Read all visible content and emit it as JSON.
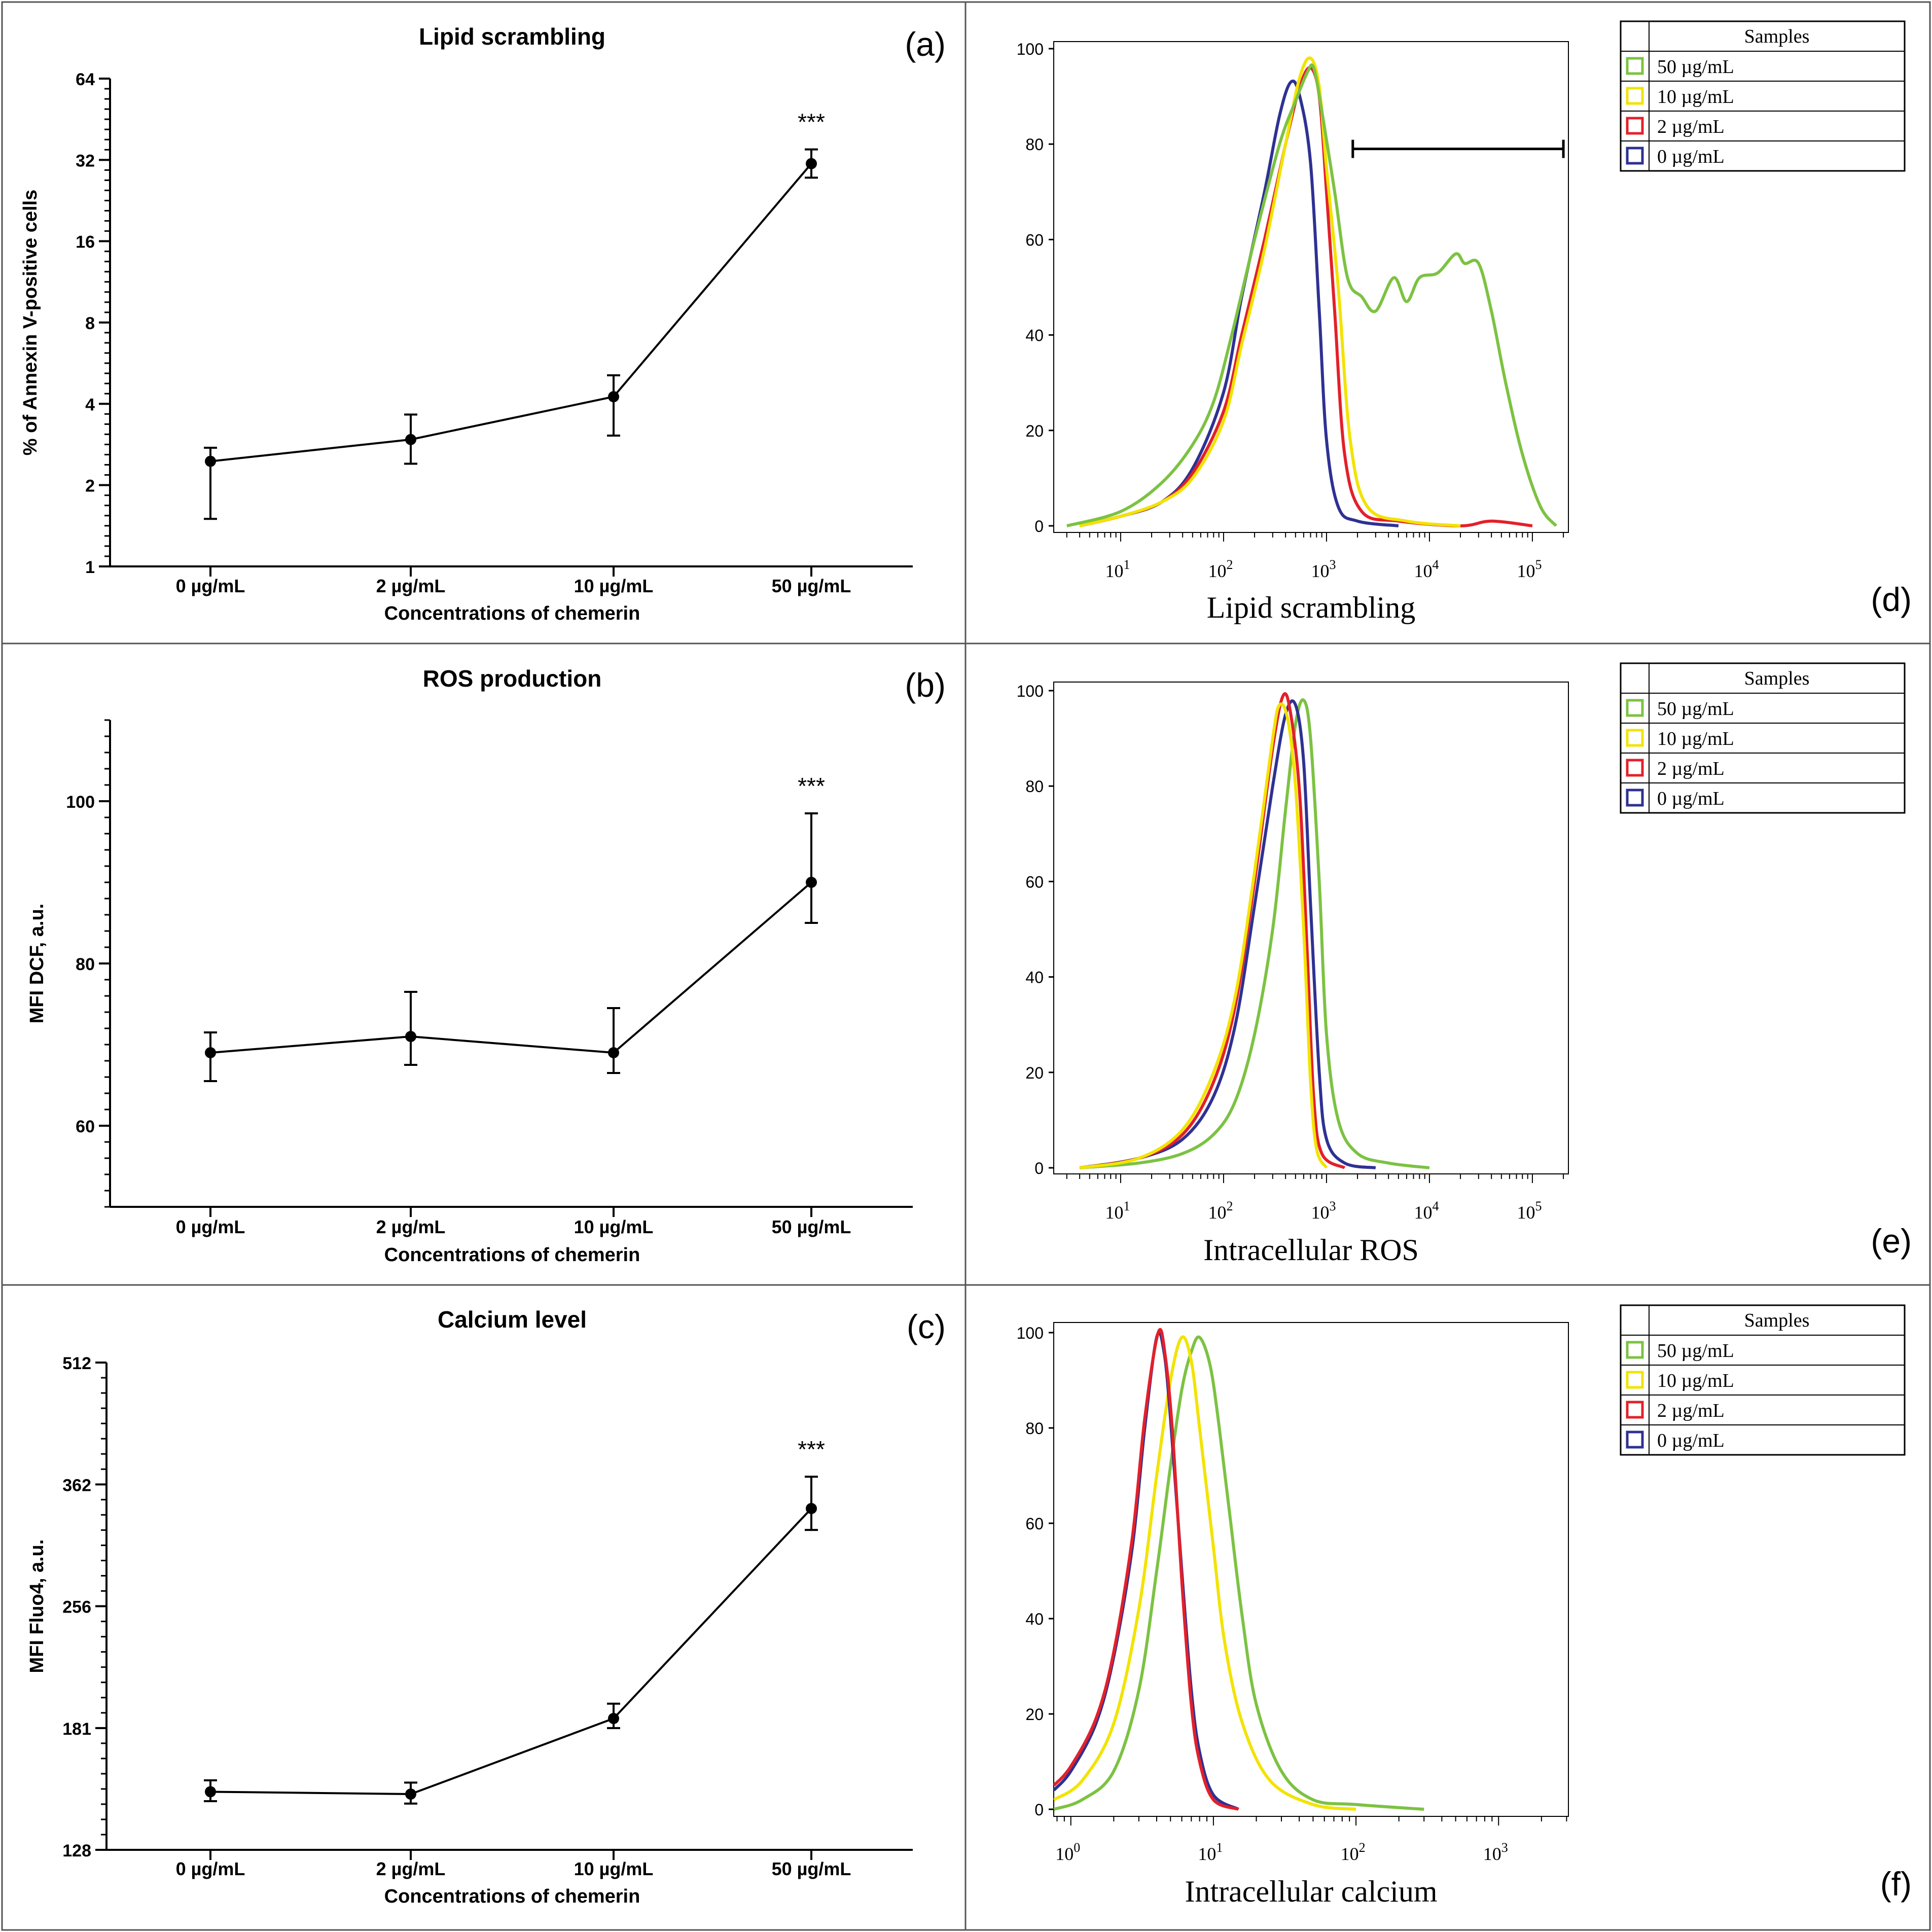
{
  "line_panels": [
    {
      "id": "a",
      "panel_label": "(a)",
      "title": "Lipid scrambling",
      "ylabel": "% of Annexin V-positive cells",
      "xlabel": "Concentrations of chemerin",
      "scale": "log2",
      "ylim": [
        1,
        64
      ],
      "yticks": [
        1,
        2,
        4,
        8,
        16,
        32,
        64
      ],
      "ytick_labels": [
        "1",
        "2",
        "4",
        "8",
        "16",
        "32",
        "64"
      ],
      "categories": [
        "0 µg/mL",
        "2 µg/mL",
        "10 µg/mL",
        "50 µg/mL"
      ],
      "values": [
        2.45,
        2.95,
        4.25,
        31.0
      ],
      "err_low": [
        1.5,
        2.4,
        3.05,
        27.5
      ],
      "err_high": [
        2.75,
        3.65,
        5.1,
        35.0
      ],
      "annotation": "***"
    },
    {
      "id": "b",
      "panel_label": "(b)",
      "title": "ROS production",
      "ylabel": "MFI DCF, a.u.",
      "xlabel": "Concentrations of chemerin",
      "scale": "linear",
      "ylim": [
        50,
        110
      ],
      "yticks": [
        60,
        80,
        100
      ],
      "ytick_labels": [
        "60",
        "80",
        "100"
      ],
      "categories": [
        "0 µg/mL",
        "2 µg/mL",
        "10 µg/mL",
        "50 µg/mL"
      ],
      "values": [
        69.0,
        71.0,
        69.0,
        90.0
      ],
      "err_low": [
        65.5,
        67.5,
        66.5,
        85.0
      ],
      "err_high": [
        71.5,
        76.5,
        74.5,
        98.5
      ],
      "annotation": "***"
    },
    {
      "id": "c",
      "panel_label": "(c)",
      "title": "Calcium level",
      "ylabel": "MFI Fluo4, a.u.",
      "xlabel": "Concentrations of chemerin",
      "scale": "log2",
      "ylim": [
        128,
        512
      ],
      "yticks": [
        128,
        181,
        256,
        362,
        512
      ],
      "ytick_labels": [
        "128",
        "181",
        "256",
        "362",
        "512"
      ],
      "categories": [
        "0 µg/mL",
        "2 µg/mL",
        "10 µg/mL",
        "50 µg/mL"
      ],
      "values": [
        151,
        150,
        186,
        338
      ],
      "err_low": [
        147,
        146,
        181,
        318
      ],
      "err_high": [
        156,
        155,
        194,
        370
      ],
      "annotation": "***"
    }
  ],
  "histogram_panels": [
    {
      "id": "d",
      "panel_label": "(d)",
      "xlabel": "Lipid scrambling",
      "x_log_min": 0.35,
      "x_log_max": 5.35,
      "x_decades": [
        1,
        2,
        3,
        4,
        5
      ],
      "ylim": [
        0,
        105
      ],
      "yticks": [
        0,
        20,
        40,
        60,
        80,
        100
      ],
      "gate": {
        "x_start": 1800,
        "x_end": 200000,
        "y": 79
      },
      "legend": {
        "title": "Samples",
        "items": [
          {
            "label": "50 µg/mL",
            "color": "#7cc242"
          },
          {
            "label": "10 µg/mL",
            "color": "#f2e300"
          },
          {
            "label": "2 µg/mL",
            "color": "#e3202a"
          },
          {
            "label": "0 µg/mL",
            "color": "#2e3192"
          }
        ]
      },
      "series": [
        {
          "name": "0 µg/mL",
          "color": "#2e3192",
          "points": [
            [
              4,
              0
            ],
            [
              10,
              2
            ],
            [
              25,
              5
            ],
            [
              50,
              12
            ],
            [
              100,
              28
            ],
            [
              150,
              48
            ],
            [
              250,
              70
            ],
            [
              350,
              86
            ],
            [
              450,
              93
            ],
            [
              550,
              90
            ],
            [
              700,
              76
            ],
            [
              850,
              45
            ],
            [
              1000,
              18
            ],
            [
              1300,
              4
            ],
            [
              2000,
              1
            ],
            [
              5000,
              0
            ]
          ]
        },
        {
          "name": "2 µg/mL",
          "color": "#e3202a",
          "points": [
            [
              4,
              0
            ],
            [
              10,
              2
            ],
            [
              25,
              5
            ],
            [
              50,
              11
            ],
            [
              100,
              24
            ],
            [
              150,
              40
            ],
            [
              250,
              60
            ],
            [
              400,
              80
            ],
            [
              550,
              92
            ],
            [
              700,
              96
            ],
            [
              850,
              90
            ],
            [
              1000,
              70
            ],
            [
              1200,
              45
            ],
            [
              1500,
              15
            ],
            [
              2200,
              3
            ],
            [
              5000,
              1
            ],
            [
              20000,
              0
            ],
            [
              40000,
              1
            ],
            [
              100000,
              0
            ]
          ]
        },
        {
          "name": "10 µg/mL",
          "color": "#f2e300",
          "points": [
            [
              4,
              0
            ],
            [
              10,
              2
            ],
            [
              25,
              5
            ],
            [
              50,
              10
            ],
            [
              100,
              22
            ],
            [
              150,
              38
            ],
            [
              250,
              58
            ],
            [
              400,
              80
            ],
            [
              550,
              94
            ],
            [
              700,
              98
            ],
            [
              850,
              92
            ],
            [
              1000,
              75
            ],
            [
              1300,
              50
            ],
            [
              1700,
              18
            ],
            [
              2500,
              4
            ],
            [
              6000,
              1
            ],
            [
              20000,
              0
            ]
          ]
        },
        {
          "name": "50 µg/mL",
          "color": "#7cc242",
          "points": [
            [
              3,
              0
            ],
            [
              10,
              3
            ],
            [
              25,
              9
            ],
            [
              50,
              17
            ],
            [
              80,
              26
            ],
            [
              120,
              40
            ],
            [
              200,
              60
            ],
            [
              350,
              80
            ],
            [
              500,
              89
            ],
            [
              650,
              95
            ],
            [
              750,
              96
            ],
            [
              900,
              87
            ],
            [
              1200,
              70
            ],
            [
              1600,
              52
            ],
            [
              2200,
              48
            ],
            [
              3000,
              45
            ],
            [
              4500,
              52
            ],
            [
              6000,
              47
            ],
            [
              8000,
              52
            ],
            [
              12000,
              53
            ],
            [
              18000,
              57
            ],
            [
              22000,
              55
            ],
            [
              30000,
              55
            ],
            [
              40000,
              45
            ],
            [
              55000,
              30
            ],
            [
              80000,
              15
            ],
            [
              120000,
              4
            ],
            [
              170000,
              0
            ]
          ]
        }
      ]
    },
    {
      "id": "e",
      "panel_label": "(e)",
      "xlabel": "Intracellular ROS",
      "x_log_min": 0.35,
      "x_log_max": 5.35,
      "x_decades": [
        1,
        2,
        3,
        4,
        5
      ],
      "ylim": [
        0,
        105
      ],
      "yticks": [
        0,
        20,
        40,
        60,
        80,
        100
      ],
      "legend": {
        "title": "Samples",
        "items": [
          {
            "label": "50 µg/mL",
            "color": "#7cc242"
          },
          {
            "label": "10 µg/mL",
            "color": "#f2e300"
          },
          {
            "label": "2 µg/mL",
            "color": "#e3202a"
          },
          {
            "label": "0 µg/mL",
            "color": "#2e3192"
          }
        ]
      },
      "series": [
        {
          "name": "50 µg/mL",
          "color": "#7cc242",
          "points": [
            [
              4,
              0
            ],
            [
              15,
              1
            ],
            [
              40,
              3
            ],
            [
              80,
              7
            ],
            [
              130,
              14
            ],
            [
              200,
              28
            ],
            [
              300,
              50
            ],
            [
              400,
              75
            ],
            [
              500,
              93
            ],
            [
              600,
              98
            ],
            [
              700,
              90
            ],
            [
              850,
              60
            ],
            [
              1000,
              28
            ],
            [
              1300,
              10
            ],
            [
              2000,
              3
            ],
            [
              4000,
              1
            ],
            [
              10000,
              0
            ]
          ]
        },
        {
          "name": "0 µg/mL",
          "color": "#2e3192",
          "points": [
            [
              4,
              0
            ],
            [
              15,
              2
            ],
            [
              40,
              6
            ],
            [
              80,
              15
            ],
            [
              130,
              30
            ],
            [
              200,
              55
            ],
            [
              300,
              80
            ],
            [
              400,
              95
            ],
            [
              500,
              97
            ],
            [
              600,
              85
            ],
            [
              700,
              55
            ],
            [
              850,
              20
            ],
            [
              1000,
              6
            ],
            [
              1500,
              1
            ],
            [
              3000,
              0
            ]
          ]
        },
        {
          "name": "2 µg/mL",
          "color": "#e3202a",
          "points": [
            [
              4,
              0
            ],
            [
              15,
              2
            ],
            [
              40,
              7
            ],
            [
              80,
              18
            ],
            [
              130,
              34
            ],
            [
              200,
              60
            ],
            [
              300,
              88
            ],
            [
              380,
              99
            ],
            [
              450,
              95
            ],
            [
              550,
              78
            ],
            [
              650,
              45
            ],
            [
              750,
              15
            ],
            [
              900,
              3
            ],
            [
              1500,
              0
            ]
          ]
        },
        {
          "name": "10 µg/mL",
          "color": "#f2e300",
          "points": [
            [
              4,
              0
            ],
            [
              15,
              2
            ],
            [
              40,
              8
            ],
            [
              80,
              20
            ],
            [
              130,
              36
            ],
            [
              200,
              62
            ],
            [
              300,
              90
            ],
            [
              350,
              97
            ],
            [
              420,
              94
            ],
            [
              500,
              80
            ],
            [
              600,
              50
            ],
            [
              700,
              18
            ],
            [
              800,
              4
            ],
            [
              1000,
              0
            ]
          ]
        }
      ]
    },
    {
      "id": "f",
      "panel_label": "(f)",
      "xlabel": "Intracellular calcium",
      "x_log_min": -0.12,
      "x_log_max": 3.49,
      "x_decades": [
        0,
        1,
        2,
        3
      ],
      "ylim": [
        0,
        105
      ],
      "yticks": [
        0,
        20,
        40,
        60,
        80,
        100
      ],
      "legend": {
        "title": "Samples",
        "items": [
          {
            "label": "50 µg/mL",
            "color": "#7cc242"
          },
          {
            "label": "10 µg/mL",
            "color": "#f2e300"
          },
          {
            "label": "2 µg/mL",
            "color": "#e3202a"
          },
          {
            "label": "0 µg/mL",
            "color": "#2e3192"
          }
        ]
      },
      "series": [
        {
          "name": "50 µg/mL",
          "color": "#7cc242",
          "points": [
            [
              0.76,
              0
            ],
            [
              1.2,
              2
            ],
            [
              2,
              8
            ],
            [
              3,
              25
            ],
            [
              4,
              50
            ],
            [
              5,
              72
            ],
            [
              6,
              88
            ],
            [
              7,
              96
            ],
            [
              8,
              99
            ],
            [
              9.5,
              93
            ],
            [
              11,
              80
            ],
            [
              13,
              62
            ],
            [
              16,
              40
            ],
            [
              20,
              22
            ],
            [
              30,
              8
            ],
            [
              50,
              2
            ],
            [
              100,
              1
            ],
            [
              300,
              0
            ]
          ]
        },
        {
          "name": "10 µg/mL",
          "color": "#f2e300",
          "points": [
            [
              0.76,
              2
            ],
            [
              1.2,
              6
            ],
            [
              2,
              18
            ],
            [
              3,
              42
            ],
            [
              4,
              70
            ],
            [
              5,
              90
            ],
            [
              6,
              99
            ],
            [
              7,
              94
            ],
            [
              8,
              80
            ],
            [
              10,
              55
            ],
            [
              12,
              35
            ],
            [
              16,
              18
            ],
            [
              25,
              6
            ],
            [
              50,
              1
            ],
            [
              100,
              0
            ]
          ]
        },
        {
          "name": "0 µg/mL",
          "color": "#2e3192",
          "points": [
            [
              0.76,
              4
            ],
            [
              1,
              8
            ],
            [
              1.5,
              18
            ],
            [
              2,
              32
            ],
            [
              2.7,
              55
            ],
            [
              3.3,
              80
            ],
            [
              4,
              99
            ],
            [
              4.5,
              96
            ],
            [
              5,
              82
            ],
            [
              6,
              50
            ],
            [
              7,
              25
            ],
            [
              8,
              12
            ],
            [
              10,
              3
            ],
            [
              15,
              0
            ]
          ]
        },
        {
          "name": "2 µg/mL",
          "color": "#e3202a",
          "points": [
            [
              0.76,
              5
            ],
            [
              1,
              9
            ],
            [
              1.5,
              19
            ],
            [
              2,
              33
            ],
            [
              2.7,
              57
            ],
            [
              3.3,
              82
            ],
            [
              4.1,
              100
            ],
            [
              4.6,
              95
            ],
            [
              5.2,
              78
            ],
            [
              6,
              48
            ],
            [
              7,
              22
            ],
            [
              8,
              10
            ],
            [
              10,
              2
            ],
            [
              15,
              0
            ]
          ]
        }
      ]
    }
  ],
  "colors": {
    "line": "#000000",
    "frame": "#555555"
  }
}
